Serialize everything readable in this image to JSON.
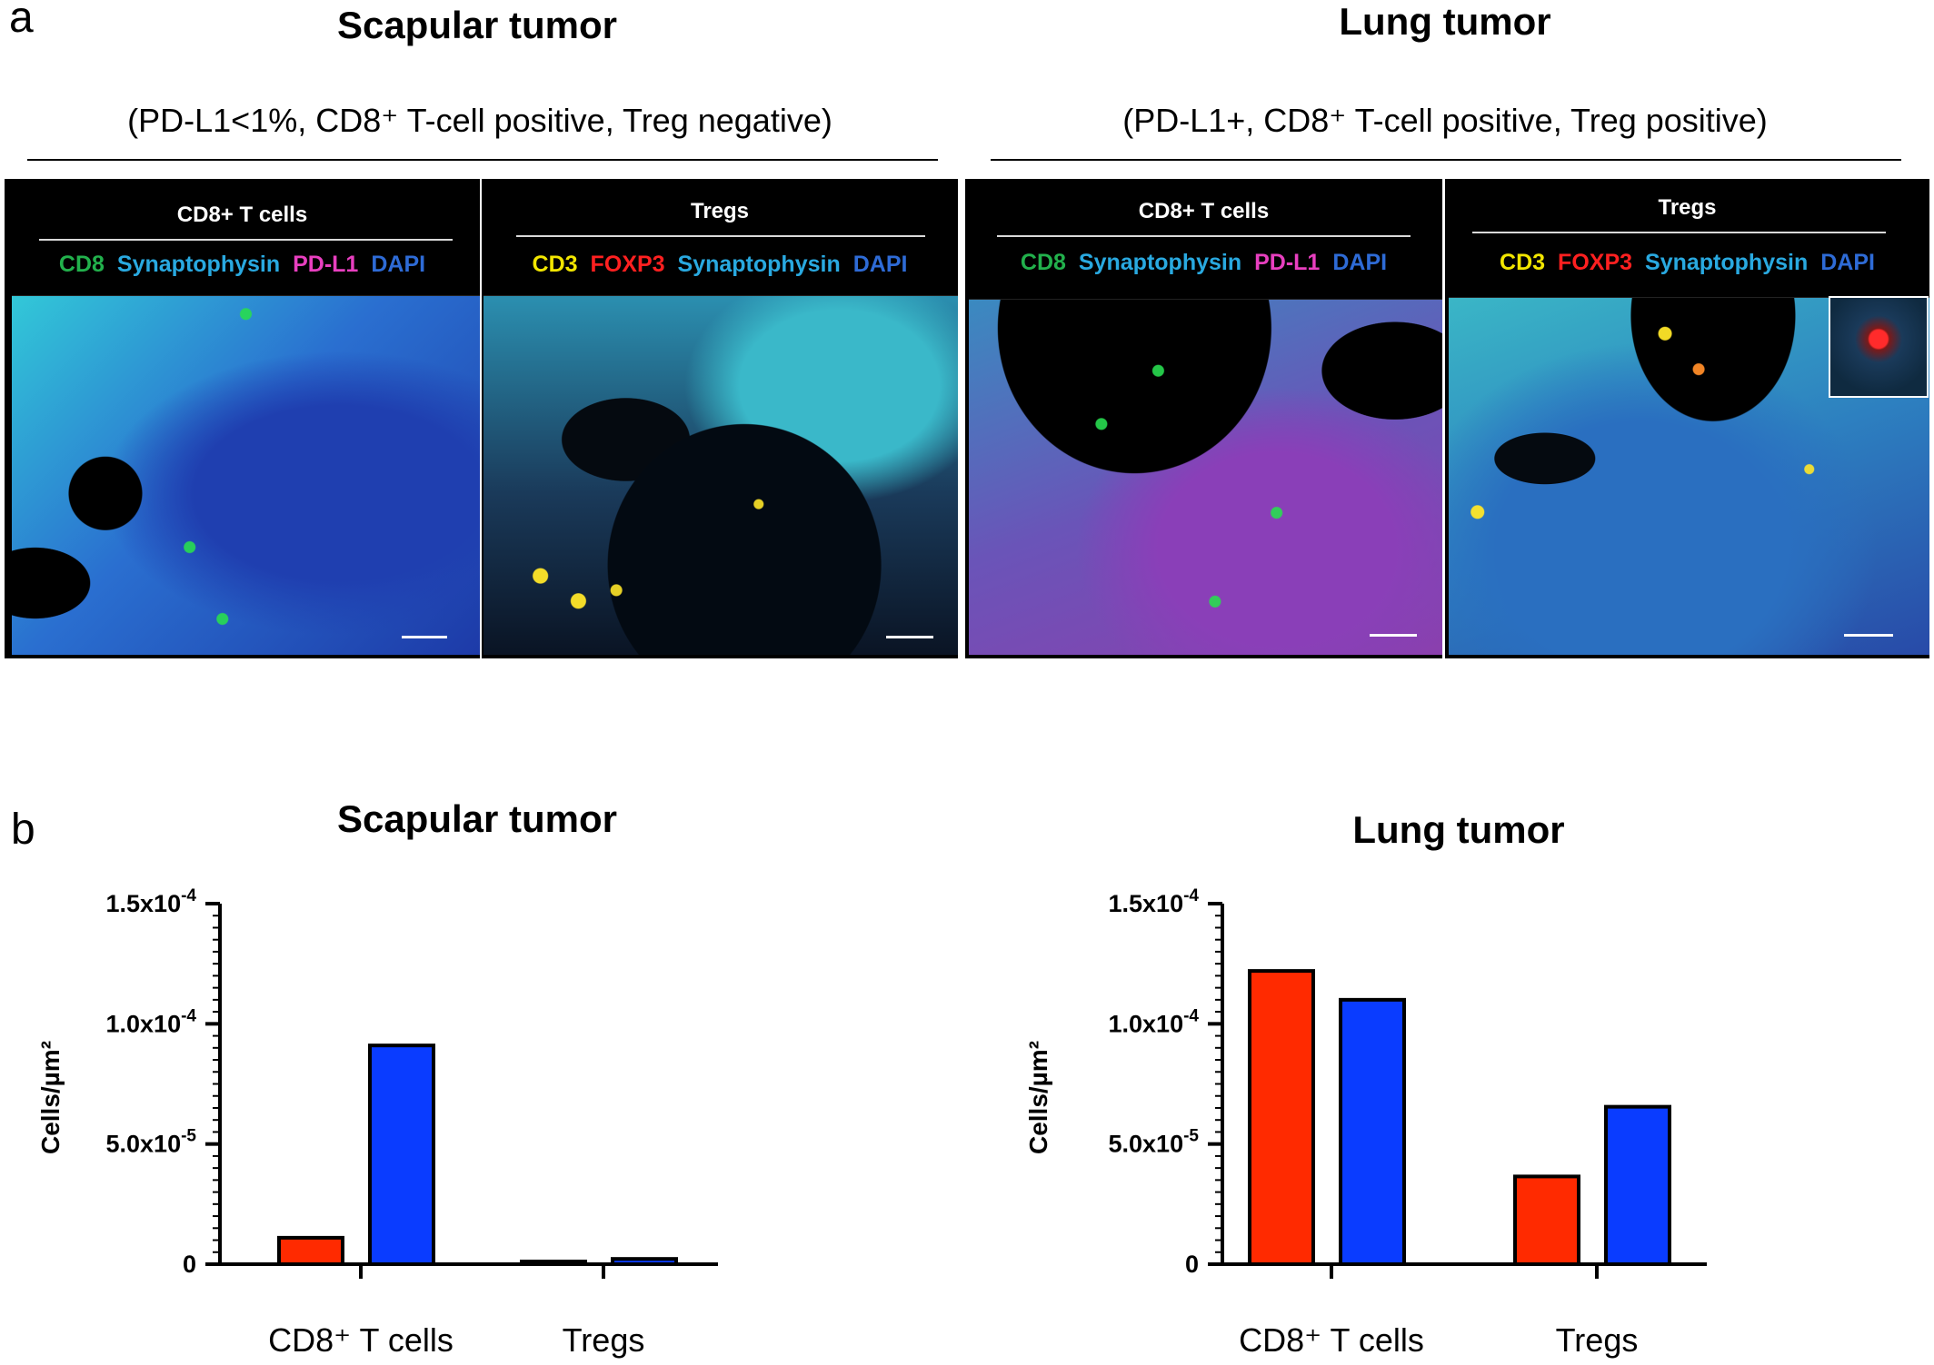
{
  "panel_a": {
    "letter": "a",
    "groups": [
      {
        "title": "Scapular tumor",
        "subtitle": "(PD-L1<1%, CD8⁺ T-cell positive, Treg negative)",
        "images": [
          {
            "header": "CD8+ T cells",
            "legend": [
              {
                "text": "CD8",
                "color": "#22b14c"
              },
              {
                "text": "Synaptophysin",
                "color": "#29a9e0"
              },
              {
                "text": "PD-L1",
                "color": "#e83fbf"
              },
              {
                "text": "DAPI",
                "color": "#2e6bd6"
              }
            ]
          },
          {
            "header": "Tregs",
            "legend": [
              {
                "text": "CD3",
                "color": "#f2e600"
              },
              {
                "text": "FOXP3",
                "color": "#ff2020"
              },
              {
                "text": "Synaptophysin",
                "color": "#29a9e0"
              },
              {
                "text": "DAPI",
                "color": "#2e6bd6"
              }
            ]
          }
        ]
      },
      {
        "title": "Lung tumor",
        "subtitle": "(PD-L1+, CD8⁺ T-cell positive, Treg positive)",
        "images": [
          {
            "header": "CD8+ T cells",
            "legend": [
              {
                "text": "CD8",
                "color": "#22b14c"
              },
              {
                "text": "Synaptophysin",
                "color": "#29a9e0"
              },
              {
                "text": "PD-L1",
                "color": "#e83fbf"
              },
              {
                "text": "DAPI",
                "color": "#2e6bd6"
              }
            ]
          },
          {
            "header": "Tregs",
            "legend": [
              {
                "text": "CD3",
                "color": "#f2e600"
              },
              {
                "text": "FOXP3",
                "color": "#ff2020"
              },
              {
                "text": "Synaptophysin",
                "color": "#29a9e0"
              },
              {
                "text": "DAPI",
                "color": "#2e6bd6"
              }
            ]
          }
        ]
      }
    ]
  },
  "panel_b": {
    "letter": "b"
  },
  "chart_data": [
    {
      "type": "bar",
      "title": "Scapular tumor",
      "ylabel": "Cells/µm²",
      "categories": [
        "CD8⁺ T cells",
        "Tregs"
      ],
      "series": [
        {
          "color": "#ff2a00",
          "values": [
            1.1e-05,
            8e-07
          ]
        },
        {
          "color": "#0a3cff",
          "values": [
            9.1e-05,
            2.2e-06
          ]
        }
      ],
      "ylim": [
        0,
        0.00015
      ],
      "yticks": [
        {
          "value": 0,
          "label": "0"
        },
        {
          "value": 5e-05,
          "label": "5.0x10",
          "exp": "-5"
        },
        {
          "value": 0.0001,
          "label": "1.0x10",
          "exp": "-4"
        },
        {
          "value": 0.00015,
          "label": "1.5x10",
          "exp": "-4"
        }
      ]
    },
    {
      "type": "bar",
      "title": "Lung tumor",
      "ylabel": "Cells/µm²",
      "categories": [
        "CD8⁺ T cells",
        "Tregs"
      ],
      "series": [
        {
          "color": "#ff2a00",
          "values": [
            0.000122,
            3.65e-05
          ]
        },
        {
          "color": "#0a3cff",
          "values": [
            0.00011,
            6.55e-05
          ]
        }
      ],
      "ylim": [
        0,
        0.00015
      ],
      "yticks": [
        {
          "value": 0,
          "label": "0"
        },
        {
          "value": 5e-05,
          "label": "5.0x10",
          "exp": "-5"
        },
        {
          "value": 0.0001,
          "label": "1.0x10",
          "exp": "-4"
        },
        {
          "value": 0.00015,
          "label": "1.5x10",
          "exp": "-4"
        }
      ]
    }
  ]
}
